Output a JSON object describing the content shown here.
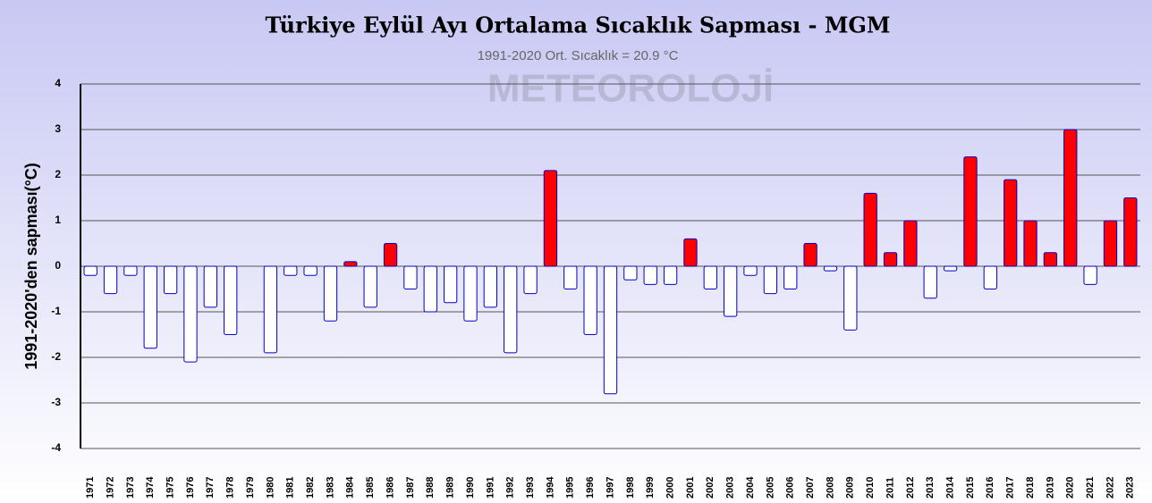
{
  "chart_data": {
    "type": "bar",
    "title": "Türkiye Eylül Ayı Ortalama Sıcaklık Sapması - MGM",
    "subtitle": "1991-2020 Ort. Sıcaklık = 20.9 °C",
    "y_label": "1991-2020'den sapması(°C)",
    "watermark": "METEOROLOJİ",
    "categories": [
      "1971",
      "1972",
      "1973",
      "1974",
      "1975",
      "1976",
      "1977",
      "1978",
      "1979",
      "1980",
      "1981",
      "1982",
      "1983",
      "1984",
      "1985",
      "1986",
      "1987",
      "1988",
      "1989",
      "1990",
      "1991",
      "1992",
      "1993",
      "1994",
      "1995",
      "1996",
      "1997",
      "1998",
      "1999",
      "2000",
      "2001",
      "2002",
      "2003",
      "2004",
      "2005",
      "2006",
      "2007",
      "2008",
      "2009",
      "2010",
      "2011",
      "2012",
      "2013",
      "2014",
      "2015",
      "2016",
      "2017",
      "2018",
      "2019",
      "2020",
      "2021",
      "2022",
      "2023"
    ],
    "values": [
      -0.2,
      -0.6,
      -0.2,
      -1.8,
      -0.6,
      -2.1,
      -0.9,
      -1.5,
      0.0,
      -1.9,
      -0.2,
      -0.2,
      -1.2,
      0.1,
      -0.9,
      0.5,
      -0.5,
      -1.0,
      -0.8,
      -1.2,
      -0.9,
      -1.9,
      -0.6,
      2.1,
      -0.5,
      -1.5,
      -2.8,
      -0.3,
      -0.4,
      -0.4,
      0.6,
      -0.5,
      -1.1,
      -0.2,
      -0.6,
      -0.5,
      0.5,
      -0.1,
      -1.4,
      1.6,
      0.3,
      1.0,
      -0.7,
      -0.1,
      2.4,
      -0.5,
      1.9,
      1.0,
      0.3,
      3.0,
      -0.4,
      1.0,
      1.5
    ],
    "positive_color": "#ff0000",
    "negative_color": "#ffffff",
    "edge_color": "#0000cc",
    "ylim": [
      -4,
      4
    ],
    "yticks": [
      -4,
      -3,
      -2,
      -1,
      0,
      1,
      2,
      3,
      4
    ],
    "grid": true
  }
}
